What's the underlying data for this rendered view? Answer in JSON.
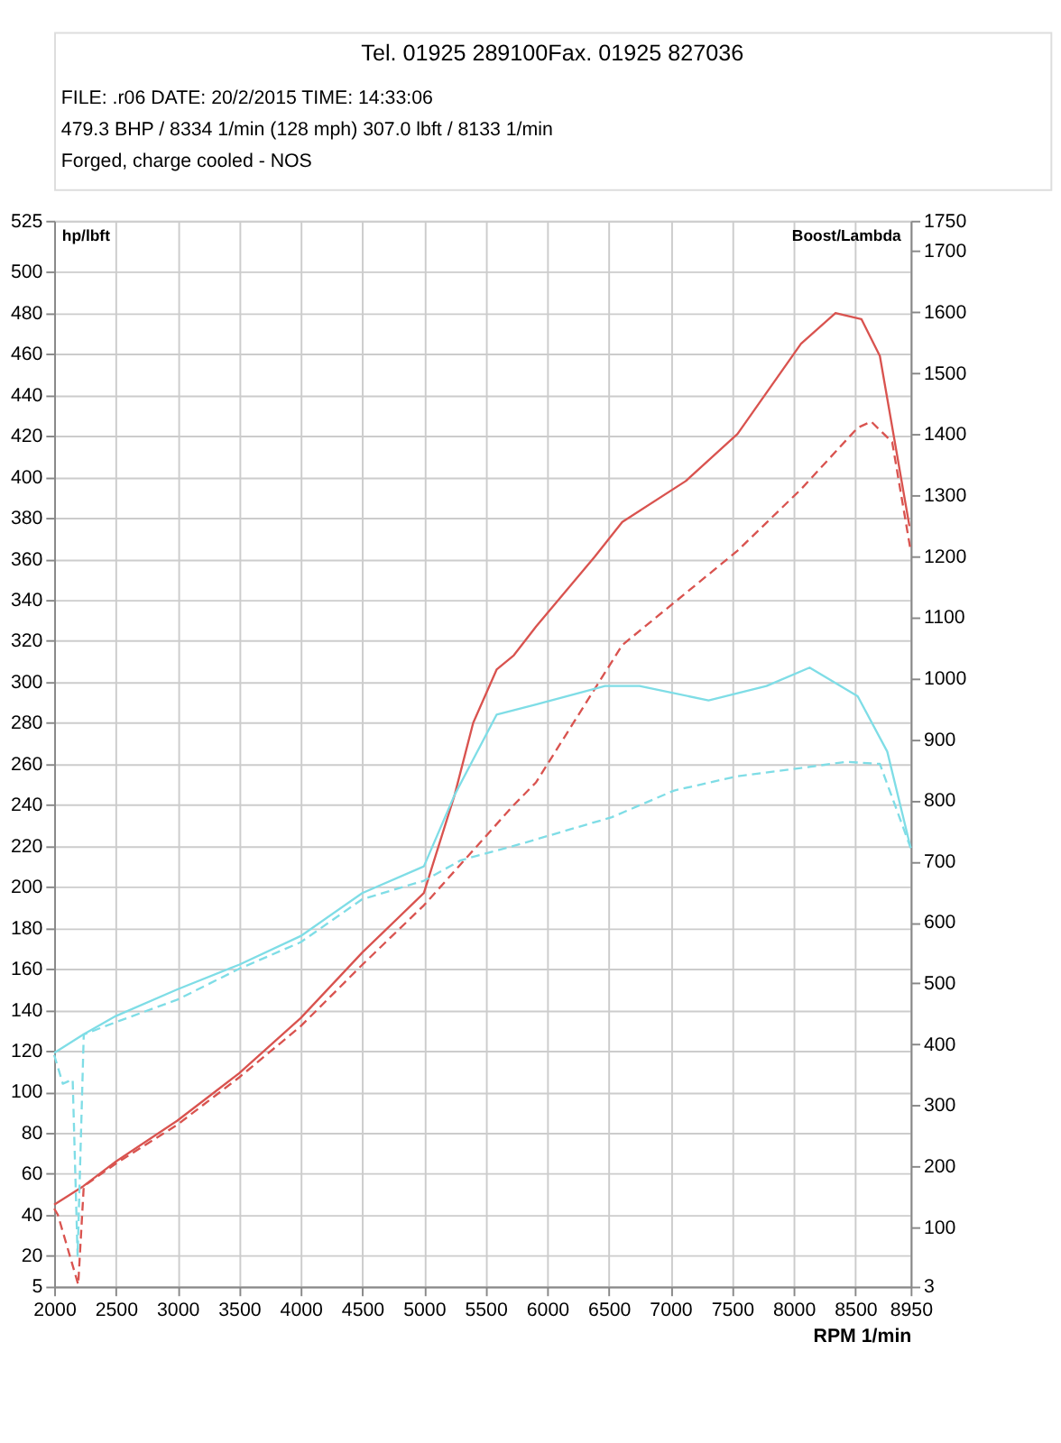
{
  "chart_data": {
    "type": "line",
    "xlabel": "RPM  1/min",
    "ylabel": "hp/lbft",
    "y2label": "Boost/Lambda",
    "annotations": [
      "Tel. 01925 289100Fax. 01925 827036",
      "FILE: .r06  DATE: 20/2/2015  TIME: 14:33:06",
      "479.3 BHP / 8334 1/min (128 mph)    307.0 lbft / 8133 1/min",
      "Forged, charge cooled - NOS"
    ],
    "xlim": [
      2000,
      8950
    ],
    "xticks": [
      2000,
      2500,
      3000,
      3500,
      4000,
      4500,
      5000,
      5500,
      6000,
      6500,
      7000,
      7500,
      8000,
      8500,
      8950
    ],
    "ylim": [
      5,
      525
    ],
    "yticks": [
      5,
      20,
      40,
      60,
      80,
      100,
      120,
      140,
      160,
      180,
      200,
      220,
      240,
      260,
      280,
      300,
      320,
      340,
      360,
      380,
      400,
      420,
      440,
      460,
      480,
      500,
      525
    ],
    "y2lim": [
      3,
      1750
    ],
    "y2ticks": [
      3,
      100,
      200,
      300,
      400,
      500,
      600,
      700,
      800,
      900,
      1000,
      1100,
      1200,
      1300,
      1400,
      1500,
      1600,
      1700,
      1750
    ],
    "grid": true,
    "legend": false,
    "marker": "none",
    "series": [
      {
        "color": "#d9534f",
        "line_style": "solid",
        "x": [
          2000,
          2237,
          2500,
          3000,
          3500,
          4000,
          4500,
          5000,
          5250,
          5400,
          5590,
          5730,
          5910,
          6385,
          6610,
          7125,
          7545,
          8060,
          8340,
          8550,
          8700,
          8940
        ],
        "values": [
          45,
          54,
          66,
          86,
          109,
          136,
          168,
          197,
          245,
          280,
          306,
          313,
          327,
          361,
          378,
          398,
          421,
          465,
          480,
          477,
          459,
          376
        ]
      },
      {
        "color": "#d9534f",
        "line_style": "dashed",
        "x": [
          2000,
          2030,
          2195,
          2240,
          2500,
          3000,
          3500,
          4000,
          4500,
          5000,
          5730,
          5910,
          6610,
          7545,
          8060,
          8520,
          8630,
          8800,
          8950
        ],
        "values": [
          43,
          40,
          6,
          54,
          65,
          84,
          107,
          132,
          162,
          191,
          240,
          251,
          318,
          364,
          394,
          424,
          427,
          417,
          364
        ]
      },
      {
        "color": "#7fdde6",
        "line_style": "solid",
        "x": [
          2000,
          2237,
          2500,
          3000,
          3500,
          4000,
          4500,
          5000,
          5250,
          5590,
          5910,
          6470,
          6750,
          7310,
          7780,
          8130,
          8520,
          8760,
          8950
        ],
        "values": [
          119,
          128,
          137,
          150,
          162,
          176,
          197,
          210,
          245,
          284,
          289,
          298,
          298,
          291,
          298,
          307,
          293,
          266,
          219
        ]
      },
      {
        "color": "#7fdde6",
        "line_style": "dashed",
        "x": [
          2000,
          2070,
          2150,
          2190,
          2240,
          2500,
          3000,
          3500,
          4000,
          4500,
          5000,
          5300,
          5730,
          6525,
          7030,
          7545,
          8060,
          8425,
          8700,
          8950
        ],
        "values": [
          118,
          104,
          106,
          20,
          128,
          134,
          145,
          160,
          173,
          194,
          203,
          213,
          220,
          234,
          247,
          254,
          258,
          261,
          260,
          219
        ]
      }
    ]
  }
}
